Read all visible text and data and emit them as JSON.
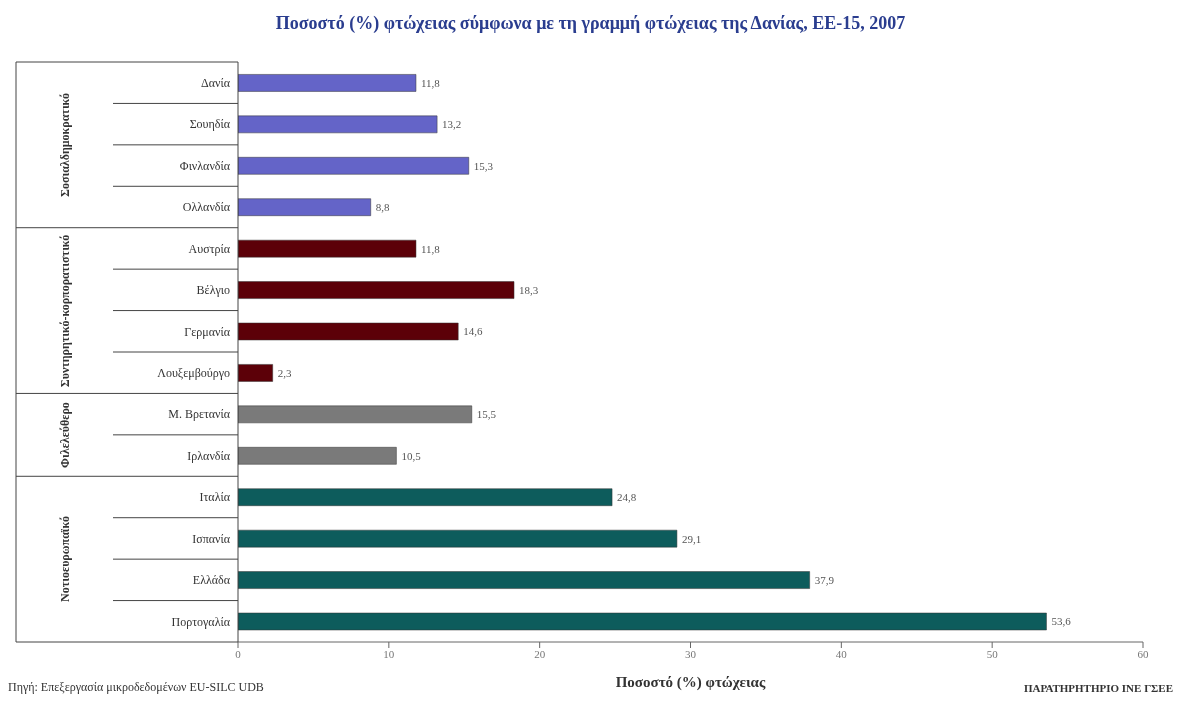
{
  "chart_data": {
    "type": "bar",
    "orientation": "horizontal",
    "title": "Ποσοστό (%) φτώχειας σύμφωνα με τη γραμμή φτώχειας της Δανίας, ΕΕ-15, 2007",
    "xlabel": "Ποσοστό (%) φτώχειας",
    "categories": [
      "Δανία",
      "Σουηδία",
      "Φινλανδία",
      "Ολλανδία",
      "Αυστρία",
      "Βέλγιο",
      "Γερμανία",
      "Λουξεμβούργο",
      "Μ. Βρετανία",
      "Ιρλανδία",
      "Ιταλία",
      "Ισπανία",
      "Ελλάδα",
      "Πορτογαλία"
    ],
    "values": [
      11.8,
      13.2,
      15.3,
      8.8,
      11.8,
      18.3,
      14.6,
      2.3,
      15.5,
      10.5,
      24.8,
      29.1,
      37.9,
      53.6
    ],
    "value_labels": [
      "11,8",
      "13,2",
      "15,3",
      "8,8",
      "11,8",
      "18,3",
      "14,6",
      "2,3",
      "15,5",
      "10,5",
      "24,8",
      "29,1",
      "37,9",
      "53,6"
    ],
    "colors": [
      "#6464c8",
      "#6464c8",
      "#6464c8",
      "#6464c8",
      "#5c0008",
      "#5c0008",
      "#5c0008",
      "#5c0008",
      "#7a7a7a",
      "#7a7a7a",
      "#0d5c5c",
      "#0d5c5c",
      "#0d5c5c",
      "#0d5c5c"
    ],
    "xlim": [
      0,
      60
    ],
    "xticks": [
      0,
      10,
      20,
      30,
      40,
      50,
      60
    ],
    "grid": false,
    "annotations": [
      "Σοσιαλδημοκρατικό",
      "Συντηρητικό-κορπορατιστικό",
      "Φιλελεύθερο",
      "Νοτιοευρωπαϊκό",
      "Πηγή: Επεξεργασία μικροδεδομένων EU-SILC UDB",
      "ΠΑΡΑΤΗΡΗΤΗΡΙΟ ΙΝΕ ΓΣΕΕ"
    ]
  }
}
